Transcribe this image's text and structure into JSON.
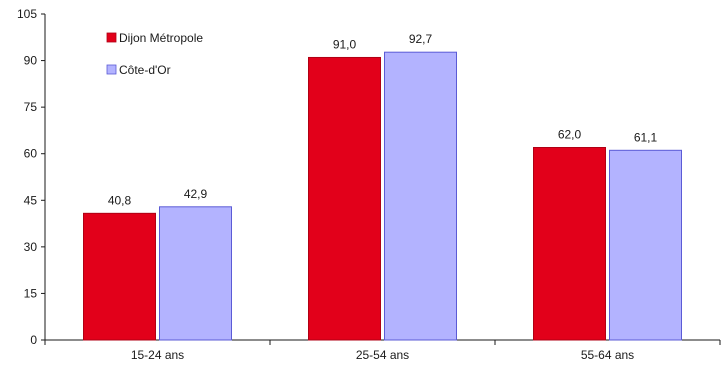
{
  "chart_data": {
    "type": "bar",
    "title": "",
    "xlabel": "",
    "ylabel": "",
    "categories": [
      "15-24 ans",
      "25-54 ans",
      "55-64 ans"
    ],
    "ylim": [
      0,
      105
    ],
    "yticks": [
      0,
      15,
      30,
      45,
      60,
      75,
      90,
      105
    ],
    "grid": false,
    "legend_position": "top-left",
    "series": [
      {
        "name": "Dijon Métropole",
        "values": [
          40.8,
          91.0,
          62.0
        ],
        "labels": [
          "40,8",
          "91,0",
          "62,0"
        ],
        "color": "#e2001a",
        "stroke": "#b00014"
      },
      {
        "name": "Côte-d'Or",
        "values": [
          42.9,
          92.7,
          61.1
        ],
        "labels": [
          "42,9",
          "92,7",
          "61,1"
        ],
        "color": "#b3b3ff",
        "stroke": "#5b5bd6"
      }
    ]
  }
}
